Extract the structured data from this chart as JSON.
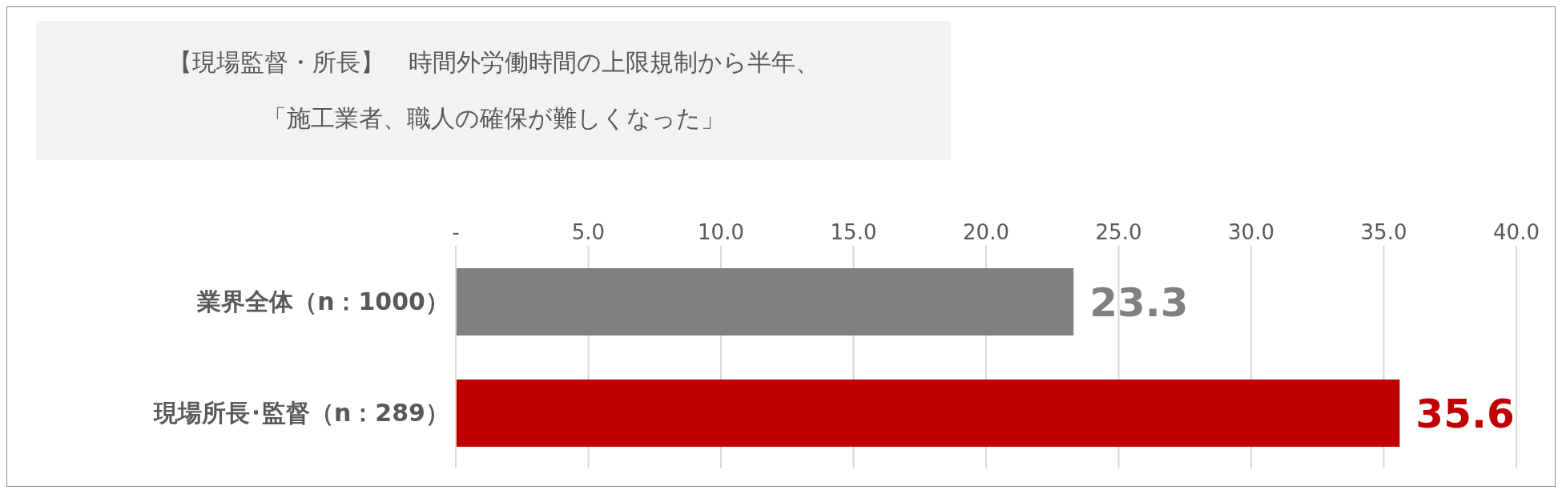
{
  "chart_data": {
    "type": "bar",
    "orientation": "horizontal",
    "title": "【現場監督・所長】　時間外労働時間の上限規制から半年、",
    "subtitle": "「施工業者、職人の確保が難しくなった」",
    "categories": [
      "業界全体（n：1000）",
      "現場所長･監督（n：289）"
    ],
    "values": [
      23.3,
      35.6
    ],
    "colors": [
      "#808080",
      "#c00000"
    ],
    "xlim": [
      0,
      40
    ],
    "xticks": [
      {
        "value": 0,
        "label": "-"
      },
      {
        "value": 5,
        "label": "5.0"
      },
      {
        "value": 10,
        "label": "10.0"
      },
      {
        "value": 15,
        "label": "15.0"
      },
      {
        "value": 20,
        "label": "20.0"
      },
      {
        "value": 25,
        "label": "25.0"
      },
      {
        "value": 30,
        "label": "30.0"
      },
      {
        "value": 35,
        "label": "35.0"
      },
      {
        "value": 40,
        "label": "40.0"
      }
    ],
    "grid": "x",
    "data_labels": true
  }
}
